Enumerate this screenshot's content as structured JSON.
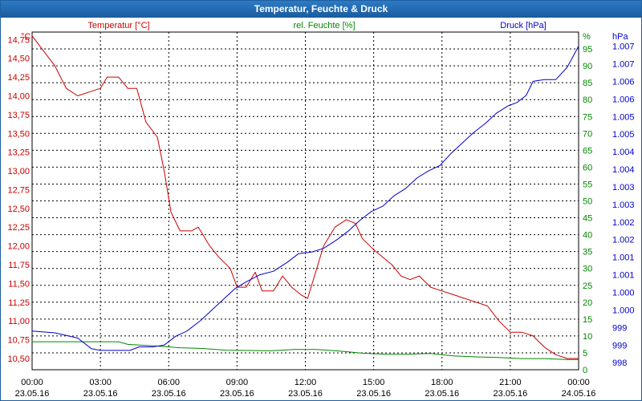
{
  "window": {
    "title": "Temperatur, Feuchte & Druck"
  },
  "colors": {
    "temperature": "#cc0000",
    "humidity": "#008800",
    "pressure": "#0000cc",
    "grid": "#000000"
  },
  "chart_data": {
    "type": "line",
    "title": "Temperatur, Feuchte & Druck",
    "x_ticks": [
      {
        "hour": 0,
        "time": "00:00",
        "date": "23.05.16"
      },
      {
        "hour": 3,
        "time": "03:00",
        "date": "23.05.16"
      },
      {
        "hour": 6,
        "time": "06:00",
        "date": "23.05.16"
      },
      {
        "hour": 9,
        "time": "09:00",
        "date": "23.05.16"
      },
      {
        "hour": 12,
        "time": "12:00",
        "date": "23.05.16"
      },
      {
        "hour": 15,
        "time": "15:00",
        "date": "23.05.16"
      },
      {
        "hour": 18,
        "time": "18:00",
        "date": "23.05.16"
      },
      {
        "hour": 21,
        "time": "21:00",
        "date": "23.05.16"
      },
      {
        "hour": 24,
        "time": "00:00",
        "date": "24.05.16"
      }
    ],
    "xlim": [
      0,
      24
    ],
    "axes": {
      "left": {
        "unit": "°C",
        "label": "Temperatur [°C]",
        "range": [
          10.35,
          14.85
        ],
        "ticks": [
          "10,50",
          "10,75",
          "11,00",
          "11,25",
          "11,50",
          "11,75",
          "12,00",
          "12,25",
          "12,50",
          "12,75",
          "13,00",
          "13,25",
          "13,50",
          "13,75",
          "14,00",
          "14,25",
          "14,50",
          "14,75"
        ],
        "tick_values": [
          10.5,
          10.75,
          11.0,
          11.25,
          11.5,
          11.75,
          12.0,
          12.25,
          12.5,
          12.75,
          13.0,
          13.25,
          13.5,
          13.75,
          14.0,
          14.25,
          14.5,
          14.75
        ]
      },
      "mid": {
        "unit": "%",
        "label": "rel. Feuchte [%]",
        "range": [
          0,
          100
        ],
        "ticks": [
          "0",
          "5",
          "10",
          "15",
          "20",
          "25",
          "30",
          "35",
          "40",
          "45",
          "50",
          "55",
          "60",
          "65",
          "70",
          "75",
          "80",
          "85",
          "90",
          "95"
        ],
        "tick_values": [
          0,
          5,
          10,
          15,
          20,
          25,
          30,
          35,
          40,
          45,
          50,
          55,
          60,
          65,
          70,
          75,
          80,
          85,
          90,
          95
        ]
      },
      "right": {
        "unit": "hPa",
        "label": "Druck [hPa]",
        "range": [
          997.8,
          1007.4
        ],
        "ticks": [
          "998",
          "999",
          "999",
          "1.000",
          "1.000",
          "1.001",
          "1.001",
          "1.002",
          "1.002",
          "1.003",
          "1.003",
          "1.004",
          "1.004",
          "1.005",
          "1.005",
          "1.006",
          "1.006",
          "1.007",
          "1.007"
        ],
        "tick_values": [
          998.0,
          998.5,
          999.0,
          999.5,
          1000.0,
          1000.5,
          1001.0,
          1001.5,
          1002.0,
          1002.5,
          1003.0,
          1003.5,
          1004.0,
          1004.5,
          1005.0,
          1005.5,
          1006.0,
          1006.5,
          1007.0
        ]
      }
    },
    "series": [
      {
        "name": "Temperatur [°C]",
        "axis": "left",
        "color": "#cc0000",
        "points": [
          [
            0,
            14.8
          ],
          [
            0.5,
            14.6
          ],
          [
            1,
            14.4
          ],
          [
            1.5,
            14.1
          ],
          [
            2,
            14.0
          ],
          [
            2.5,
            14.05
          ],
          [
            3,
            14.1
          ],
          [
            3.3,
            14.25
          ],
          [
            3.8,
            14.25
          ],
          [
            4.2,
            14.1
          ],
          [
            4.6,
            14.1
          ],
          [
            5.0,
            13.65
          ],
          [
            5.5,
            13.45
          ],
          [
            5.8,
            13.0
          ],
          [
            6.1,
            12.45
          ],
          [
            6.5,
            12.2
          ],
          [
            7.0,
            12.2
          ],
          [
            7.3,
            12.25
          ],
          [
            7.8,
            12.0
          ],
          [
            8.2,
            11.85
          ],
          [
            8.7,
            11.7
          ],
          [
            9.0,
            11.45
          ],
          [
            9.4,
            11.45
          ],
          [
            9.8,
            11.65
          ],
          [
            10.1,
            11.4
          ],
          [
            10.6,
            11.4
          ],
          [
            11.0,
            11.6
          ],
          [
            11.4,
            11.45
          ],
          [
            11.8,
            11.35
          ],
          [
            12.1,
            11.3
          ],
          [
            12.4,
            11.6
          ],
          [
            12.8,
            12.0
          ],
          [
            13.3,
            12.25
          ],
          [
            13.8,
            12.35
          ],
          [
            14.2,
            12.3
          ],
          [
            14.5,
            12.1
          ],
          [
            15.0,
            11.95
          ],
          [
            15.4,
            11.85
          ],
          [
            15.8,
            11.75
          ],
          [
            16.2,
            11.6
          ],
          [
            16.6,
            11.55
          ],
          [
            17.0,
            11.6
          ],
          [
            17.5,
            11.45
          ],
          [
            18.0,
            11.4
          ],
          [
            18.5,
            11.35
          ],
          [
            19.0,
            11.3
          ],
          [
            19.5,
            11.25
          ],
          [
            20.0,
            11.2
          ],
          [
            20.5,
            11.0
          ],
          [
            21.0,
            10.85
          ],
          [
            21.5,
            10.85
          ],
          [
            22.0,
            10.8
          ],
          [
            22.5,
            10.65
          ],
          [
            23.0,
            10.55
          ],
          [
            23.5,
            10.5
          ],
          [
            24.0,
            10.5
          ]
        ]
      },
      {
        "name": "rel. Feuchte [%]",
        "axis": "mid",
        "color": "#008800",
        "points": [
          [
            0,
            8.3
          ],
          [
            3.8,
            8.3
          ],
          [
            4.2,
            7.5
          ],
          [
            5.5,
            7.0
          ],
          [
            6.5,
            6.5
          ],
          [
            7.5,
            6.3
          ],
          [
            8.5,
            5.8
          ],
          [
            9.5,
            5.7
          ],
          [
            10.5,
            5.6
          ],
          [
            11.5,
            6.0
          ],
          [
            12.5,
            6.0
          ],
          [
            13.5,
            5.5
          ],
          [
            14.5,
            4.9
          ],
          [
            15.5,
            4.6
          ],
          [
            16.5,
            4.6
          ],
          [
            17.5,
            4.8
          ],
          [
            18.5,
            4.1
          ],
          [
            19.5,
            3.8
          ],
          [
            20.5,
            3.6
          ],
          [
            21.5,
            3.3
          ],
          [
            22.5,
            3.3
          ],
          [
            23.5,
            3.0
          ],
          [
            24.0,
            3.0
          ]
        ]
      },
      {
        "name": "Druck [hPa]",
        "axis": "right",
        "color": "#0000cc",
        "points": [
          [
            0,
            998.9
          ],
          [
            1.0,
            998.85
          ],
          [
            2.0,
            998.7
          ],
          [
            2.6,
            998.4
          ],
          [
            3.0,
            998.35
          ],
          [
            3.5,
            998.35
          ],
          [
            4.3,
            998.35
          ],
          [
            4.7,
            998.45
          ],
          [
            5.3,
            998.45
          ],
          [
            5.8,
            998.5
          ],
          [
            6.3,
            998.75
          ],
          [
            6.8,
            998.9
          ],
          [
            7.4,
            999.2
          ],
          [
            7.9,
            999.5
          ],
          [
            8.4,
            999.8
          ],
          [
            8.9,
            1000.1
          ],
          [
            9.4,
            1000.3
          ],
          [
            10.0,
            1000.5
          ],
          [
            10.6,
            1000.6
          ],
          [
            11.2,
            1000.85
          ],
          [
            11.7,
            1001.1
          ],
          [
            12.3,
            1001.15
          ],
          [
            12.8,
            1001.25
          ],
          [
            13.4,
            1001.5
          ],
          [
            13.9,
            1001.75
          ],
          [
            14.4,
            1002.05
          ],
          [
            14.9,
            1002.3
          ],
          [
            15.4,
            1002.45
          ],
          [
            15.9,
            1002.75
          ],
          [
            16.4,
            1002.95
          ],
          [
            16.9,
            1003.25
          ],
          [
            17.4,
            1003.45
          ],
          [
            17.9,
            1003.6
          ],
          [
            18.4,
            1003.95
          ],
          [
            18.9,
            1004.25
          ],
          [
            19.4,
            1004.55
          ],
          [
            19.9,
            1004.8
          ],
          [
            20.4,
            1005.1
          ],
          [
            20.9,
            1005.3
          ],
          [
            21.3,
            1005.4
          ],
          [
            21.7,
            1005.6
          ],
          [
            22.0,
            1006.0
          ],
          [
            22.5,
            1006.05
          ],
          [
            23.0,
            1006.05
          ],
          [
            23.5,
            1006.4
          ],
          [
            24.0,
            1007.0
          ]
        ]
      }
    ]
  }
}
